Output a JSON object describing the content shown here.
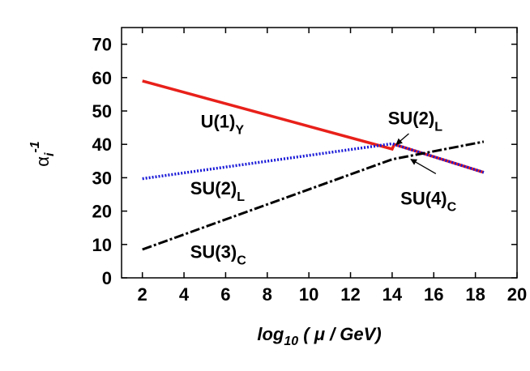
{
  "chart_data": {
    "type": "line",
    "xlabel": {
      "main": "log",
      "sub": "10",
      "rest": " ( μ / GeV)"
    },
    "ylabel": {
      "base": "α",
      "sub": "i",
      "sup": "-1"
    },
    "xlim": [
      1,
      20
    ],
    "ylim": [
      0,
      75
    ],
    "xticks": [
      2,
      4,
      6,
      8,
      10,
      12,
      14,
      16,
      18,
      20
    ],
    "yticks": [
      0,
      10,
      20,
      30,
      40,
      50,
      60,
      70
    ],
    "grid": false,
    "legend": "none",
    "series": [
      {
        "label_main": "U(1)",
        "label_sub": "Y",
        "color": "#e8201a",
        "style": "solid",
        "x": [
          2,
          14,
          14.1,
          18.4
        ],
        "y": [
          59,
          38.6,
          40,
          31.6
        ]
      },
      {
        "label_main": "SU(2)",
        "label_sub": "L",
        "color": "#1a1ad8",
        "style": "dotted",
        "x": [
          2,
          14,
          14.1,
          18.4
        ],
        "y": [
          29.7,
          40.2,
          40,
          31.6
        ]
      },
      {
        "label_main": "SU(3)",
        "label_sub": "C",
        "color": "#000000",
        "style": "dashdot",
        "x": [
          2,
          14,
          18.4
        ],
        "y": [
          8.5,
          35.5,
          40.8
        ]
      }
    ],
    "annotations": [
      {
        "main": "SU(2)",
        "sub": "L",
        "arrow_to": [
          14.2,
          40
        ]
      },
      {
        "main": "SU(4)",
        "sub": "C",
        "arrow_to": [
          14.9,
          35.5
        ]
      }
    ]
  }
}
